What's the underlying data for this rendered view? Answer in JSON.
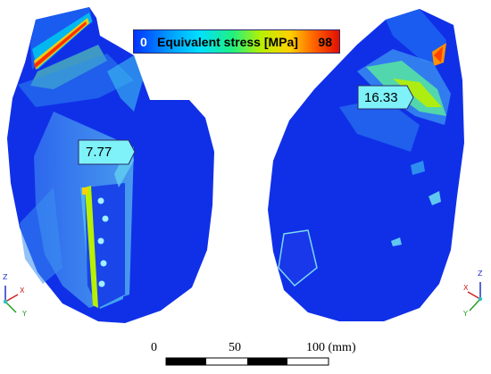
{
  "legend": {
    "min": "0",
    "title": "Equivalent stress [MPa]",
    "max": "98"
  },
  "callouts": [
    {
      "value": "7.77"
    },
    {
      "value": "16.33"
    }
  ],
  "scale_bar": {
    "tick_0": "0",
    "tick_50": "50",
    "tick_100": "100 (mm)"
  },
  "triad_left": {
    "z": "Z",
    "x": "X",
    "y": "Y"
  },
  "triad_right": {
    "z": "Z",
    "x": "X",
    "y": "Y"
  },
  "colors": {
    "model_blue": "#1030e8",
    "accent_cyan": "#7ef2f8",
    "hot_red": "#e01000"
  }
}
